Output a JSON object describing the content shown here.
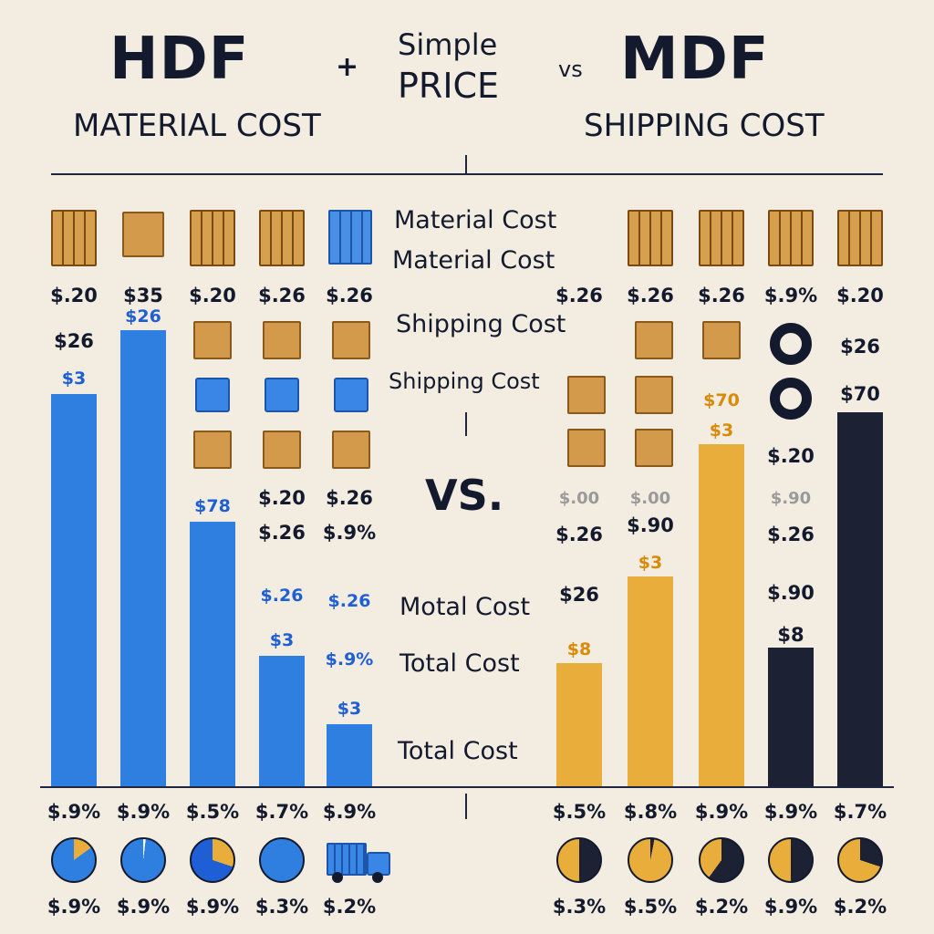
{
  "header": {
    "left_title": "HDF",
    "left_subtitle": "MATERIAL COST",
    "plus": "+",
    "center_top": "Simple",
    "center_bottom": "PRICE",
    "vs_small": "vs",
    "right_title": "MDF",
    "right_subtitle": "SHIPPING COST"
  },
  "middle": {
    "material_1": "Material Cost",
    "material_2": "Material Cost",
    "shipping_1": "Shipping Cost",
    "shipping_2": "Shipping Cost",
    "vs_big": "VS.",
    "total_1": "Motal Cost",
    "total_2": "Total Cost",
    "total_3": "Total Cost"
  },
  "colors": {
    "blue": "#2f7fe0",
    "gold": "#e8ad3a",
    "navy": "#1c2233",
    "bg": "#f3ece0"
  },
  "chart_data": {
    "type": "bar",
    "groups": [
      "HDF",
      "MDF"
    ],
    "hdf": {
      "values": [
        430,
        500,
        290,
        143,
        68
      ],
      "bar_labels": [
        "$3",
        "",
        "$78",
        "$3",
        "$3"
      ],
      "bar_label_extra": [
        "",
        "$26",
        "",
        "",
        ""
      ],
      "top_labels": [
        "$.20",
        "$35",
        "$.20",
        "$.26",
        "$.26"
      ],
      "row2_labels": [
        "$26",
        "",
        "",
        "",
        ""
      ],
      "mid_labels_a": [
        "",
        "",
        "$.20",
        "$.26"
      ],
      "mid_labels_b": [
        "",
        "",
        "$.26",
        "$.9%"
      ],
      "low_labels": [
        "",
        "",
        "$.26",
        "$.26"
      ],
      "low_labels_b": [
        "",
        "",
        "",
        "$.9%"
      ],
      "bottom_labels": [
        "$.9%",
        "$.9%",
        "$.5%",
        "$.7%",
        "$.9%"
      ],
      "pie_labels": [
        "$.9%",
        "$.9%",
        "$.9%",
        "$.3%",
        "$.2%"
      ],
      "pie_fractions": [
        0.15,
        0.02,
        0.3,
        0.0,
        0
      ]
    },
    "mdf": {
      "values": [
        135,
        230,
        375,
        152,
        410
      ],
      "colors": [
        "#e8ad3a",
        "#e8ad3a",
        "#e8ad3a",
        "#1c2233",
        "#1c2233"
      ],
      "bar_labels": [
        "$8",
        "$3",
        "$3",
        "$8",
        ""
      ],
      "bar_label_extra": [
        "",
        "",
        "$70",
        "",
        "$70"
      ],
      "top_labels": [
        "$.26",
        "$.26",
        "$.26",
        "$.9%",
        "$.20"
      ],
      "row_labels_a": [
        "$.00",
        "$.00",
        "",
        "$.90"
      ],
      "row_labels_b": [
        "$.26",
        "$.90",
        "",
        "$.26",
        ""
      ],
      "row_labels_c": [
        "$26",
        "",
        "",
        "$.90",
        ""
      ],
      "extra_label": [
        "",
        "",
        "",
        "$.20",
        "$26"
      ],
      "bottom_labels": [
        "$.5%",
        "$.8%",
        "$.9%",
        "$.9%",
        "$.7%"
      ],
      "pie_labels": [
        "$.3%",
        "$.5%",
        "$.2%",
        "$.9%",
        "$.2%"
      ],
      "pie_fractions": [
        0.5,
        0.03,
        0.6,
        0.5,
        0.3
      ]
    }
  }
}
